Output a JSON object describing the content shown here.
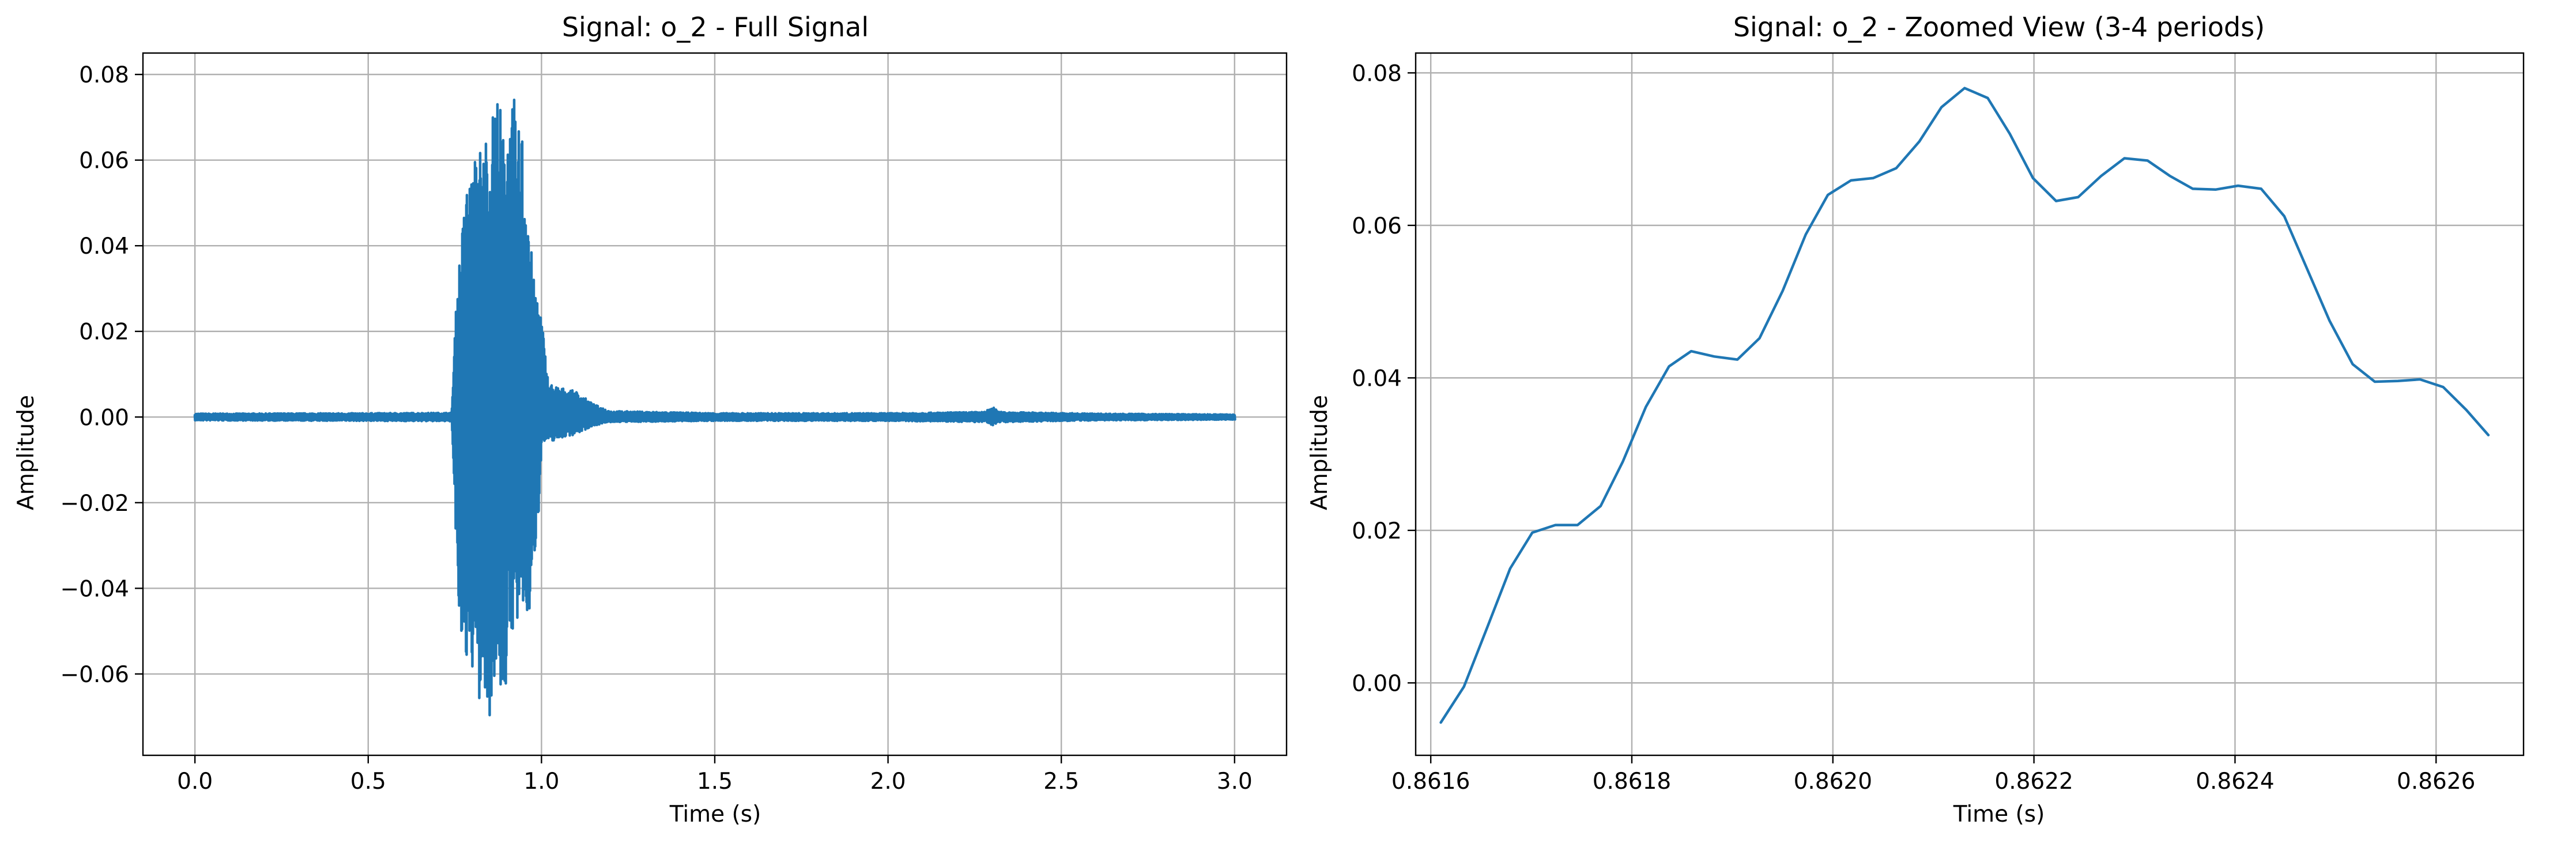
{
  "chart_data": [
    {
      "type": "line",
      "title": "Signal: o_2 - Full Signal",
      "xlabel": "Time (s)",
      "ylabel": "Amplitude",
      "xlim": [
        -0.15,
        3.15
      ],
      "ylim": [
        -0.079,
        0.085
      ],
      "xticks": [
        0.0,
        0.5,
        1.0,
        1.5,
        2.0,
        2.5,
        3.0
      ],
      "xtick_labels": [
        "0.0",
        "0.5",
        "1.0",
        "1.5",
        "2.0",
        "2.5",
        "3.0"
      ],
      "yticks": [
        -0.06,
        -0.04,
        -0.02,
        0.0,
        0.02,
        0.04,
        0.06,
        0.08
      ],
      "ytick_labels": [
        "−0.06",
        "−0.04",
        "−0.02",
        "0.00",
        "0.02",
        "0.04",
        "0.06",
        "0.08"
      ],
      "grid": true,
      "color": "#1f77b4",
      "envelope": {
        "x": [
          0.0,
          0.5,
          0.74,
          0.745,
          0.75,
          0.76,
          0.77,
          0.78,
          0.79,
          0.8,
          0.81,
          0.82,
          0.83,
          0.84,
          0.85,
          0.86,
          0.87,
          0.88,
          0.89,
          0.9,
          0.91,
          0.92,
          0.93,
          0.94,
          0.95,
          0.96,
          0.97,
          0.98,
          0.99,
          1.0,
          1.02,
          1.05,
          1.1,
          1.15,
          1.2,
          1.5,
          2.0,
          2.28,
          2.3,
          2.32,
          2.6,
          3.0
        ],
        "upper": [
          0.0008,
          0.0009,
          0.001,
          0.009,
          0.02,
          0.035,
          0.043,
          0.052,
          0.058,
          0.056,
          0.062,
          0.066,
          0.06,
          0.068,
          0.063,
          0.072,
          0.078,
          0.074,
          0.066,
          0.073,
          0.07,
          0.076,
          0.062,
          0.074,
          0.06,
          0.055,
          0.04,
          0.03,
          0.03,
          0.024,
          0.008,
          0.007,
          0.006,
          0.003,
          0.0014,
          0.0009,
          0.0009,
          0.0012,
          0.0025,
          0.0012,
          0.0008,
          0.0006
        ],
        "lower": [
          -0.0008,
          -0.0009,
          -0.001,
          -0.012,
          -0.028,
          -0.045,
          -0.062,
          -0.055,
          -0.06,
          -0.063,
          -0.052,
          -0.068,
          -0.06,
          -0.072,
          -0.07,
          -0.062,
          -0.058,
          -0.065,
          -0.067,
          -0.062,
          -0.053,
          -0.048,
          -0.05,
          -0.047,
          -0.047,
          -0.047,
          -0.046,
          -0.032,
          -0.024,
          -0.006,
          -0.006,
          -0.005,
          -0.004,
          -0.002,
          -0.0012,
          -0.0009,
          -0.0009,
          -0.0012,
          -0.002,
          -0.0012,
          -0.0008,
          -0.0006
        ]
      }
    },
    {
      "type": "line",
      "title": "Signal: o_2 - Zoomed View (3-4 periods)",
      "xlabel": "Time (s)",
      "ylabel": "Amplitude",
      "xlim": [
        0.861585,
        0.862687
      ],
      "ylim": [
        -0.0095,
        0.0826
      ],
      "xticks": [
        0.8616,
        0.8618,
        0.862,
        0.8622,
        0.8624,
        0.8626
      ],
      "xtick_labels": [
        "0.8616",
        "0.8618",
        "0.8620",
        "0.8622",
        "0.8624",
        "0.8626"
      ],
      "yticks": [
        0.0,
        0.02,
        0.04,
        0.06,
        0.08
      ],
      "ytick_labels": [
        "0.00",
        "0.02",
        "0.04",
        "0.06",
        "0.08"
      ],
      "grid": true,
      "color": "#1f77b4",
      "x": [
        0.86161,
        0.861633,
        0.861656,
        0.861679,
        0.861701,
        0.861724,
        0.861746,
        0.861769,
        0.861791,
        0.861814,
        0.861837,
        0.861859,
        0.861882,
        0.861905,
        0.861927,
        0.86195,
        0.861973,
        0.861995,
        0.862018,
        0.86204,
        0.862063,
        0.862086,
        0.862108,
        0.862131,
        0.862154,
        0.862176,
        0.862199,
        0.862222,
        0.862244,
        0.862267,
        0.86229,
        0.862313,
        0.862335,
        0.862358,
        0.862381,
        0.862403,
        0.862426,
        0.862449,
        0.862471,
        0.862494,
        0.862517,
        0.862539,
        0.862562,
        0.862584,
        0.862607,
        0.86263,
        0.862652
      ],
      "y": [
        -0.0052,
        -0.0005,
        0.0072,
        0.015,
        0.0197,
        0.0207,
        0.0207,
        0.0232,
        0.029,
        0.0362,
        0.0415,
        0.0435,
        0.0428,
        0.0424,
        0.0452,
        0.0514,
        0.0588,
        0.064,
        0.0659,
        0.0662,
        0.0675,
        0.071,
        0.0755,
        0.078,
        0.0767,
        0.072,
        0.0662,
        0.0632,
        0.0637,
        0.0665,
        0.0688,
        0.0685,
        0.0665,
        0.0648,
        0.0647,
        0.0652,
        0.0648,
        0.0612,
        0.0545,
        0.0475,
        0.0418,
        0.0395,
        0.0396,
        0.0398,
        0.0388,
        0.0358,
        0.0325
      ]
    }
  ]
}
